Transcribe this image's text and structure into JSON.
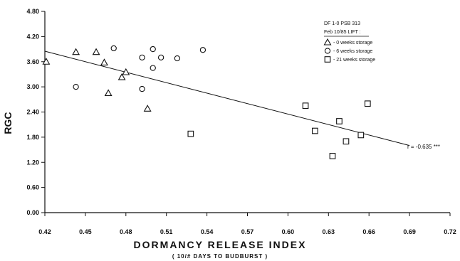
{
  "chart_data": {
    "type": "scatter",
    "title": "",
    "xlabel": "DORMANCY RELEASE INDEX",
    "xlabel_sub": "( 10/# DAYS TO BUDBURST )",
    "ylabel": "RGC",
    "xlim": [
      0.42,
      0.72
    ],
    "ylim": [
      0.0,
      4.8
    ],
    "xticks": [
      "0.42",
      "0.45",
      "0.48",
      "0.51",
      "0.54",
      "0.57",
      "0.60",
      "0.63",
      "0.66",
      "0.69",
      "0.72"
    ],
    "yticks": [
      "0.00",
      "0.60",
      "1.20",
      "1.80",
      "2.40",
      "3.00",
      "3.60",
      "4.20",
      "4.80"
    ],
    "grid": false,
    "legend_position": "top-right",
    "legend_header": [
      "DF 1-0 PSB 313",
      "Feb 10/85 LIFT :"
    ],
    "series": [
      {
        "name": "0 weeks storage",
        "marker": "triangle",
        "x": [
          0.421,
          0.443,
          0.458,
          0.464,
          0.467,
          0.477,
          0.48,
          0.496
        ],
        "y": [
          3.6,
          3.83,
          3.83,
          3.58,
          2.85,
          3.23,
          3.35,
          2.48
        ]
      },
      {
        "name": "6 weeks storage",
        "marker": "circle",
        "x": [
          0.443,
          0.471,
          0.492,
          0.492,
          0.5,
          0.5,
          0.506,
          0.518,
          0.537
        ],
        "y": [
          3.0,
          3.92,
          3.7,
          2.95,
          3.9,
          3.45,
          3.7,
          3.68,
          3.88
        ]
      },
      {
        "name": "21 weeks storage",
        "marker": "square",
        "x": [
          0.528,
          0.613,
          0.62,
          0.633,
          0.638,
          0.643,
          0.654,
          0.659
        ],
        "y": [
          1.88,
          2.55,
          1.95,
          1.35,
          2.18,
          1.7,
          1.85,
          2.6
        ]
      }
    ],
    "regression_line": {
      "x": [
        0.42,
        0.69
      ],
      "y": [
        3.85,
        1.6
      ]
    },
    "annotation": "r = -0.635 ***"
  }
}
